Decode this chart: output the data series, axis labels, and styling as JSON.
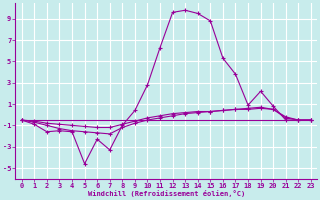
{
  "xlabel": "Windchill (Refroidissement éolien,°C)",
  "bg_color": "#c8ecec",
  "grid_color": "#ffffff",
  "line_color": "#990099",
  "x_values": [
    0,
    1,
    2,
    3,
    4,
    5,
    6,
    7,
    8,
    9,
    10,
    11,
    12,
    13,
    14,
    15,
    16,
    17,
    18,
    19,
    20,
    21,
    22,
    23
  ],
  "line1": [
    -0.5,
    -0.9,
    -1.6,
    -1.5,
    -1.6,
    -4.6,
    -2.3,
    -3.3,
    -1.0,
    0.4,
    2.8,
    6.3,
    9.6,
    9.8,
    9.5,
    8.8,
    5.3,
    3.8,
    0.9,
    2.2,
    0.8,
    -0.5,
    -0.5,
    -0.5
  ],
  "line2": [
    -0.5,
    -0.7,
    -1.0,
    -1.3,
    -1.5,
    -1.6,
    -1.7,
    -1.8,
    -1.2,
    -0.8,
    -0.5,
    -0.3,
    -0.1,
    0.1,
    0.2,
    0.3,
    0.4,
    0.5,
    0.6,
    0.7,
    0.5,
    -0.3,
    -0.5,
    -0.5
  ],
  "line3": [
    -0.5,
    -0.6,
    -0.8,
    -0.9,
    -1.0,
    -1.1,
    -1.2,
    -1.2,
    -0.9,
    -0.6,
    -0.3,
    -0.1,
    0.1,
    0.2,
    0.3,
    0.3,
    0.4,
    0.5,
    0.5,
    0.6,
    0.5,
    -0.2,
    -0.5,
    -0.5
  ],
  "line4": [
    -0.5,
    -0.5,
    -0.5,
    -0.5,
    -0.5,
    -0.5,
    -0.5,
    -0.5,
    -0.5,
    -0.5,
    -0.5,
    -0.5,
    -0.5,
    -0.5,
    -0.5,
    -0.5,
    -0.5,
    -0.5,
    -0.5,
    -0.5,
    -0.5,
    -0.5,
    -0.5,
    -0.5
  ],
  "ylim": [
    -6,
    10.5
  ],
  "xlim": [
    -0.5,
    23.5
  ],
  "yticks": [
    -5,
    -3,
    -1,
    1,
    3,
    5,
    7,
    9
  ],
  "xticks": [
    0,
    1,
    2,
    3,
    4,
    5,
    6,
    7,
    8,
    9,
    10,
    11,
    12,
    13,
    14,
    15,
    16,
    17,
    18,
    19,
    20,
    21,
    22,
    23
  ],
  "tick_fontsize": 5,
  "xlabel_fontsize": 5,
  "lw": 0.8,
  "ms": 2.5
}
